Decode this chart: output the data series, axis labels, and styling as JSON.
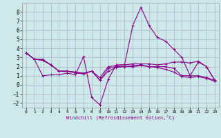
{
  "xlabel": "Windchill (Refroidissement éolien,°C)",
  "background_color": "#cce8e8",
  "grid_color": "#b0b0cc",
  "line_color": "#880088",
  "x": [
    0,
    1,
    2,
    3,
    4,
    5,
    6,
    7,
    8,
    9,
    10,
    11,
    12,
    13,
    14,
    15,
    16,
    17,
    18,
    19,
    20,
    21,
    22,
    23
  ],
  "series": [
    [
      3.5,
      2.8,
      1.0,
      1.1,
      1.1,
      1.3,
      1.1,
      3.1,
      -1.4,
      -2.2,
      0.6,
      2.2,
      2.2,
      6.5,
      8.5,
      6.5,
      5.2,
      4.8,
      3.9,
      3.0,
      1.0,
      2.5,
      2.0,
      0.5
    ],
    [
      3.5,
      2.8,
      2.8,
      2.2,
      1.5,
      1.5,
      1.4,
      1.3,
      1.5,
      0.8,
      2.0,
      2.1,
      2.2,
      2.3,
      2.3,
      2.3,
      2.2,
      2.3,
      2.5,
      2.5,
      2.4,
      2.6,
      2.0,
      0.5
    ],
    [
      3.5,
      2.8,
      2.7,
      2.2,
      1.5,
      1.5,
      1.4,
      1.2,
      1.5,
      0.5,
      1.8,
      2.0,
      2.0,
      2.1,
      2.2,
      2.0,
      2.0,
      2.0,
      1.8,
      1.0,
      1.0,
      1.0,
      0.8,
      0.5
    ],
    [
      3.5,
      2.8,
      2.7,
      2.2,
      1.5,
      1.5,
      1.3,
      1.2,
      1.5,
      0.5,
      1.5,
      1.9,
      2.0,
      2.0,
      2.1,
      2.0,
      1.9,
      1.7,
      1.4,
      0.9,
      0.8,
      0.9,
      0.7,
      0.4
    ]
  ],
  "ylim": [
    -2.5,
    9.0
  ],
  "xlim": [
    -0.5,
    23.5
  ],
  "yticks": [
    -2,
    -1,
    0,
    1,
    2,
    3,
    4,
    5,
    6,
    7,
    8
  ],
  "xticks": [
    0,
    1,
    2,
    3,
    4,
    5,
    6,
    7,
    8,
    9,
    10,
    11,
    12,
    13,
    14,
    15,
    16,
    17,
    18,
    19,
    20,
    21,
    22,
    23
  ],
  "marker": "+",
  "markersize": 3,
  "linewidth": 0.8
}
